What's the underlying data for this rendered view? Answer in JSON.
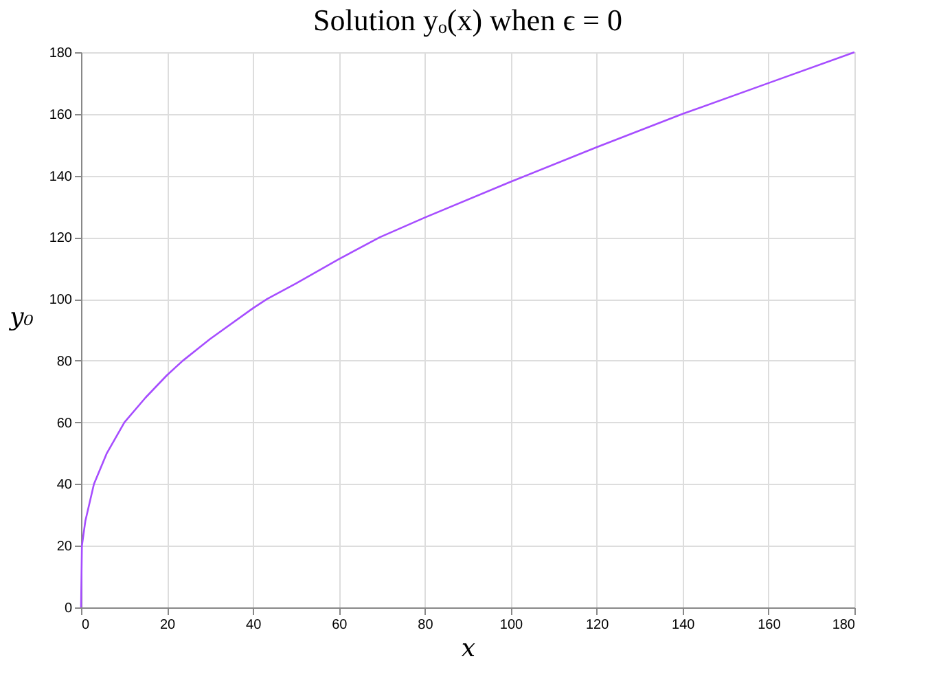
{
  "chart_data": {
    "type": "line",
    "title": "Solution yₒ(x) when ϵ = 0",
    "xlabel": "x",
    "ylabel": "y₀",
    "x": [
      0,
      0.2,
      1,
      3,
      6,
      10.1,
      15,
      20,
      23.7,
      30,
      40,
      43.3,
      50,
      60,
      69.5,
      80,
      100,
      120,
      140,
      160,
      180
    ],
    "series": [
      {
        "color": "#a64dff",
        "values": [
          0,
          20,
          28,
          40,
          50,
          60,
          68,
          75.3,
          80,
          87,
          97,
          100,
          105,
          112.9,
          120,
          126.4,
          138,
          149.2,
          160,
          170,
          180
        ]
      }
    ],
    "xlim": [
      0,
      180
    ],
    "xticks": [
      0,
      20,
      40,
      60,
      80,
      100,
      120,
      140,
      160,
      180
    ],
    "ylim": [
      0,
      180
    ],
    "yticks": [
      0,
      20,
      40,
      60,
      80,
      100,
      120,
      140,
      160,
      180
    ],
    "grid": true,
    "marker": "none",
    "line_style": "solid"
  }
}
